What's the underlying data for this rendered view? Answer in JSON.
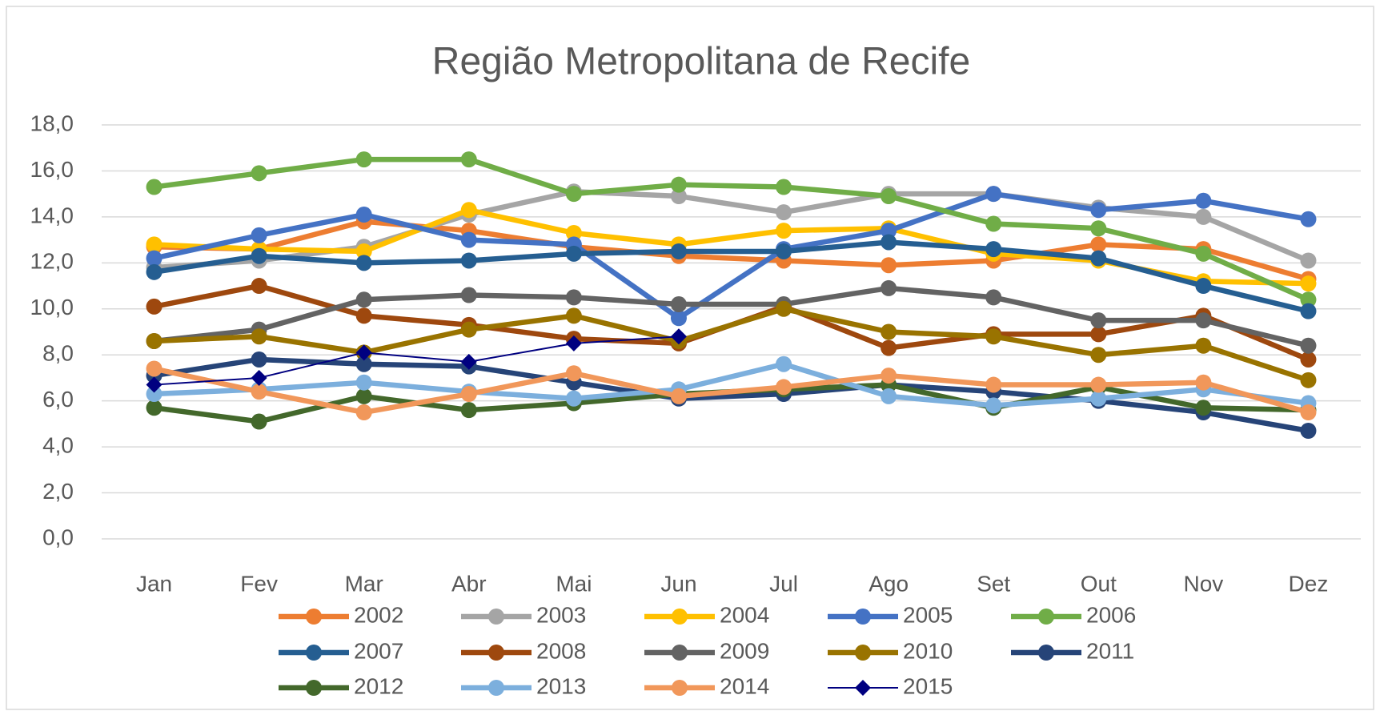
{
  "chart_data": {
    "type": "line",
    "title": "Região Metropolitana de Recife",
    "categories": [
      "Jan",
      "Fev",
      "Mar",
      "Abr",
      "Mai",
      "Jun",
      "Jul",
      "Ago",
      "Set",
      "Out",
      "Nov",
      "Dez"
    ],
    "ylim": [
      0,
      18
    ],
    "yticks": [
      {
        "value": 0,
        "label": "0,0"
      },
      {
        "value": 2,
        "label": "2,0"
      },
      {
        "value": 4,
        "label": "4,0"
      },
      {
        "value": 6,
        "label": "6,0"
      },
      {
        "value": 8,
        "label": "8,0"
      },
      {
        "value": 10,
        "label": "10,0"
      },
      {
        "value": 12,
        "label": "12,0"
      },
      {
        "value": 14,
        "label": "14,0"
      },
      {
        "value": 16,
        "label": "16,0"
      },
      {
        "value": 18,
        "label": "18,0"
      }
    ],
    "grid": true,
    "legend": "bottom",
    "series": [
      {
        "name": "2002",
        "color": "#ED7D31",
        "marker": "circle",
        "values": [
          12.7,
          12.6,
          13.8,
          13.4,
          12.7,
          12.3,
          12.1,
          11.9,
          12.1,
          12.8,
          12.6,
          11.3
        ]
      },
      {
        "name": "2003",
        "color": "#A5A5A5",
        "marker": "circle",
        "values": [
          11.8,
          12.1,
          12.7,
          14.1,
          15.1,
          14.9,
          14.2,
          15.0,
          15.0,
          14.4,
          14.0,
          12.1
        ]
      },
      {
        "name": "2004",
        "color": "#FFC000",
        "marker": "circle",
        "values": [
          12.8,
          12.6,
          12.5,
          14.3,
          13.3,
          12.8,
          13.4,
          13.5,
          12.4,
          12.1,
          11.2,
          11.1
        ]
      },
      {
        "name": "2005",
        "color": "#4472C4",
        "marker": "circle",
        "values": [
          12.2,
          13.2,
          14.1,
          13.0,
          12.8,
          9.6,
          12.6,
          13.4,
          15.0,
          14.3,
          14.7,
          13.9
        ]
      },
      {
        "name": "2006",
        "color": "#70AD47",
        "marker": "circle",
        "values": [
          15.3,
          15.9,
          16.5,
          16.5,
          15.0,
          15.4,
          15.3,
          14.9,
          13.7,
          13.5,
          12.4,
          10.4
        ]
      },
      {
        "name": "2007",
        "color": "#255E91",
        "marker": "circle",
        "values": [
          11.6,
          12.3,
          12.0,
          12.1,
          12.4,
          12.5,
          12.5,
          12.9,
          12.6,
          12.2,
          11.0,
          9.9
        ]
      },
      {
        "name": "2008",
        "color": "#9E480E",
        "marker": "circle",
        "values": [
          10.1,
          11.0,
          9.7,
          9.3,
          8.7,
          8.5,
          10.1,
          8.3,
          8.9,
          8.9,
          9.7,
          7.8
        ]
      },
      {
        "name": "2009",
        "color": "#636363",
        "marker": "circle",
        "values": [
          8.6,
          9.1,
          10.4,
          10.6,
          10.5,
          10.2,
          10.2,
          10.9,
          10.5,
          9.5,
          9.5,
          8.4
        ]
      },
      {
        "name": "2010",
        "color": "#997300",
        "marker": "circle",
        "values": [
          8.6,
          8.8,
          8.1,
          9.1,
          9.7,
          8.6,
          10.0,
          9.0,
          8.8,
          8.0,
          8.4,
          6.9
        ]
      },
      {
        "name": "2011",
        "color": "#264478",
        "marker": "circle",
        "values": [
          7.1,
          7.8,
          7.6,
          7.5,
          6.8,
          6.1,
          6.3,
          6.7,
          6.4,
          6.0,
          5.5,
          4.7
        ]
      },
      {
        "name": "2012",
        "color": "#43682B",
        "marker": "circle",
        "values": [
          5.7,
          5.1,
          6.2,
          5.6,
          5.9,
          6.3,
          6.5,
          6.7,
          5.7,
          6.6,
          5.7,
          5.6
        ]
      },
      {
        "name": "2013",
        "color": "#7CAFDD",
        "marker": "circle",
        "values": [
          6.3,
          6.5,
          6.8,
          6.4,
          6.1,
          6.5,
          7.6,
          6.2,
          5.8,
          6.1,
          6.5,
          5.9
        ]
      },
      {
        "name": "2014",
        "color": "#F1975A",
        "marker": "circle",
        "values": [
          7.4,
          6.4,
          5.5,
          6.3,
          7.2,
          6.2,
          6.6,
          7.1,
          6.7,
          6.7,
          6.8,
          5.5
        ]
      },
      {
        "name": "2015",
        "color": "#000080",
        "marker": "diamond",
        "values": [
          6.7,
          7.0,
          8.1,
          7.7,
          8.5,
          8.8,
          null,
          null,
          null,
          null,
          null,
          null
        ]
      }
    ]
  }
}
